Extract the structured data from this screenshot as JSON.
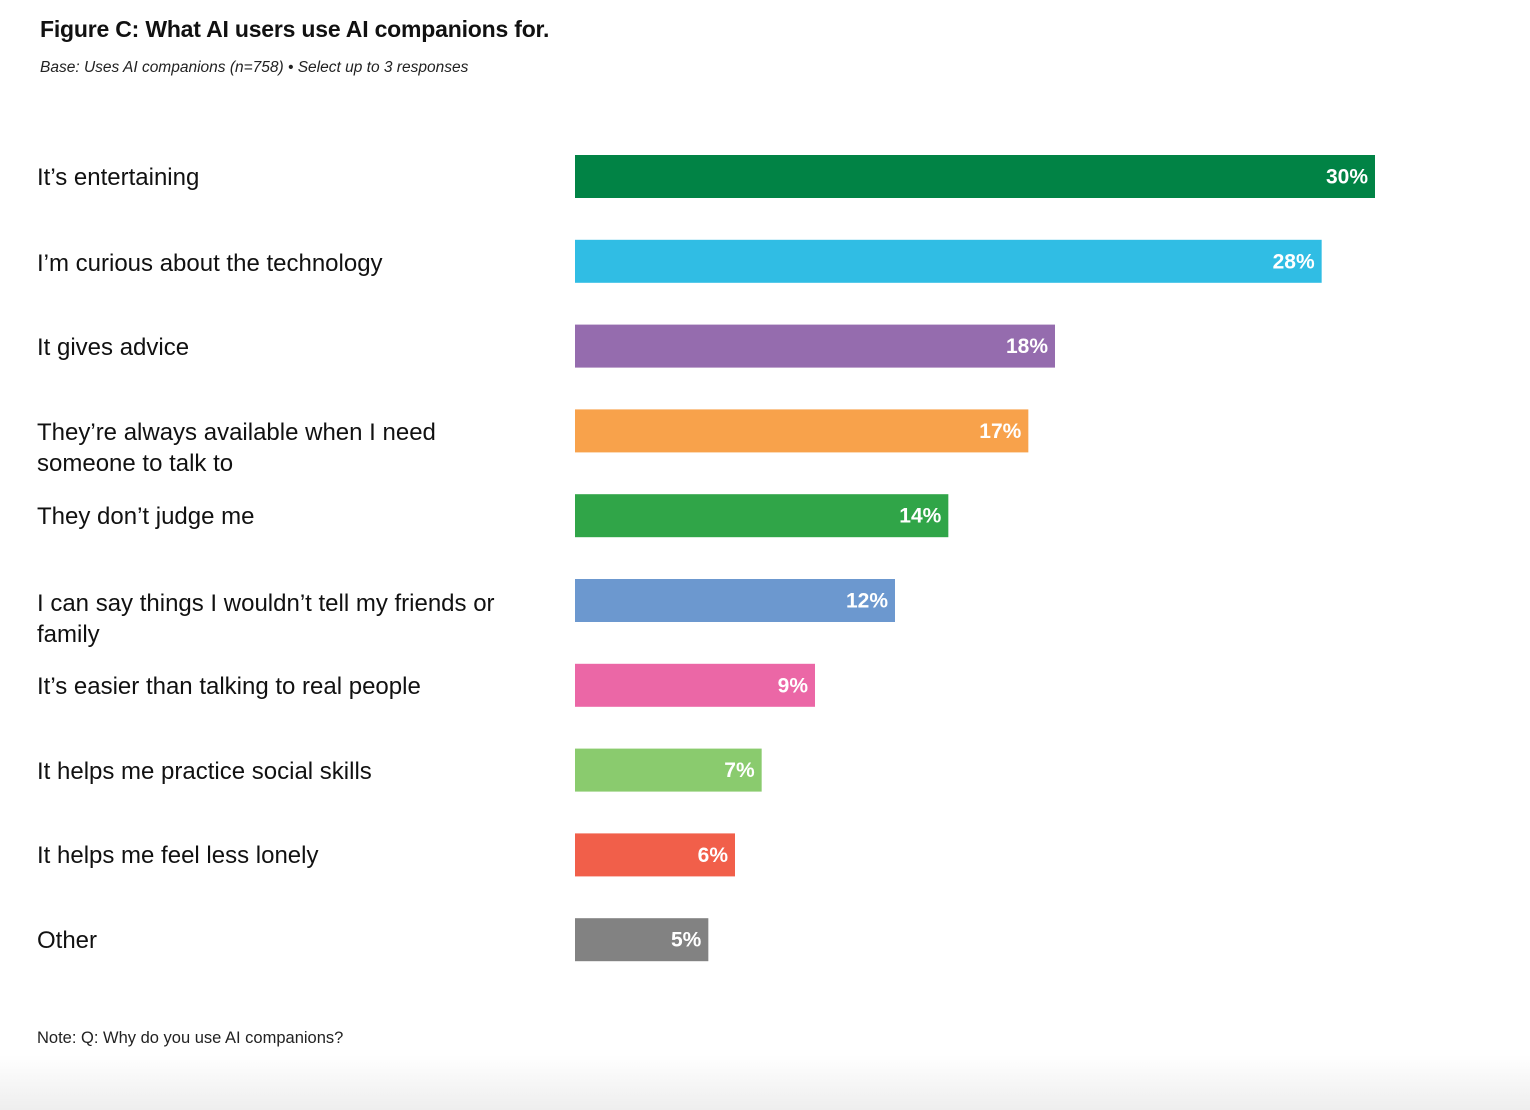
{
  "chart_data": {
    "type": "bar",
    "orientation": "horizontal",
    "title": "Figure C: What AI users use AI companions for.",
    "subtitle": "Base: Uses AI companions (n=758) • Select up to 3 responses",
    "note": "Note: Q:  Why do you use AI companions?",
    "categories": [
      "It’s entertaining",
      "I’m curious about the technology",
      "It gives advice",
      "They’re always available when I need someone to talk to",
      "They don’t judge me",
      "I can say things I wouldn’t tell my friends or family",
      "It’s easier than talking to real people",
      "It helps me practice social skills",
      "It helps me feel less lonely",
      "Other"
    ],
    "values": [
      30,
      28,
      18,
      17,
      14,
      12,
      9,
      7,
      6,
      5
    ],
    "value_labels": [
      "30%",
      "28%",
      "18%",
      "17%",
      "14%",
      "12%",
      "9%",
      "7%",
      "6%",
      "5%"
    ],
    "colors": [
      "#018345",
      "#30bde4",
      "#956cae",
      "#f8a24b",
      "#30a548",
      "#6c98cf",
      "#eb67a6",
      "#8acb6e",
      "#f15f4a",
      "#828282"
    ],
    "unit": "%",
    "xlim": [
      0,
      30
    ]
  }
}
